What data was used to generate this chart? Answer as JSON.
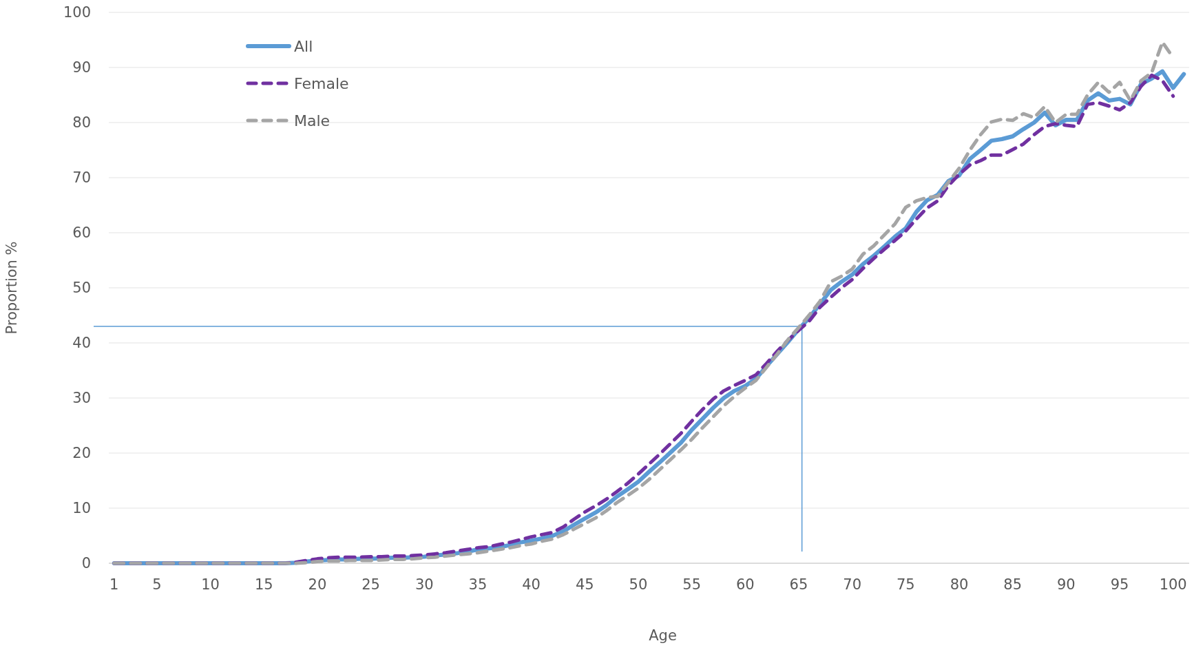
{
  "chart_data": {
    "type": "line",
    "xlabel": "Age",
    "ylabel": "Proportion %",
    "x": [
      1,
      2,
      3,
      4,
      5,
      6,
      7,
      8,
      9,
      10,
      11,
      12,
      13,
      14,
      15,
      16,
      17,
      18,
      19,
      20,
      21,
      22,
      23,
      24,
      25,
      26,
      27,
      28,
      29,
      30,
      31,
      32,
      33,
      34,
      35,
      36,
      37,
      38,
      39,
      40,
      41,
      42,
      43,
      44,
      45,
      46,
      47,
      48,
      49,
      50,
      51,
      52,
      53,
      54,
      55,
      56,
      57,
      58,
      59,
      60,
      61,
      62,
      63,
      64,
      65,
      66,
      67,
      68,
      69,
      70,
      71,
      72,
      73,
      74,
      75,
      76,
      77,
      78,
      79,
      80,
      81,
      82,
      83,
      84,
      85,
      86,
      87,
      88,
      89,
      90,
      91,
      92,
      93,
      94,
      95,
      96,
      97,
      98,
      99,
      100,
      101
    ],
    "xlim": [
      0.5,
      101.5
    ],
    "xticks": [
      1,
      5,
      10,
      15,
      20,
      25,
      30,
      35,
      40,
      45,
      50,
      55,
      60,
      65,
      70,
      75,
      80,
      85,
      90,
      95,
      100
    ],
    "ylim": [
      0,
      100
    ],
    "yticks": [
      0,
      10,
      20,
      30,
      40,
      50,
      60,
      70,
      80,
      90,
      100
    ],
    "grid": "y",
    "legend": "top left",
    "ref_lines": [
      {
        "axis": "x",
        "value": 65.3,
        "color": "#5b9bd5"
      },
      {
        "axis": "y",
        "value": 43,
        "color": "#5b9bd5"
      }
    ],
    "series": [
      {
        "name": "All",
        "color": "#5b9bd5",
        "line_style": "solid",
        "values": [
          0,
          0,
          0,
          0,
          0,
          0,
          0,
          0,
          0,
          0,
          0,
          0,
          0,
          0,
          0,
          0,
          0,
          0.1,
          0.3,
          0.5,
          0.6,
          0.7,
          0.7,
          0.8,
          0.8,
          0.9,
          1.0,
          1.0,
          1.1,
          1.2,
          1.4,
          1.6,
          1.8,
          2.1,
          2.5,
          2.7,
          2.9,
          3.3,
          3.8,
          4.1,
          4.5,
          5,
          5.8,
          7,
          8.1,
          9.2,
          10.5,
          12.1,
          13.4,
          14.8,
          16.6,
          18.3,
          20.1,
          21.9,
          24.2,
          26.2,
          28.2,
          30,
          31.3,
          32.2,
          33.5,
          35.8,
          38,
          40.2,
          42.5,
          44.6,
          47.1,
          49.6,
          51.1,
          52.4,
          54.3,
          55.8,
          57.5,
          59.3,
          60.8,
          63.8,
          65.9,
          66.9,
          69.4,
          70.4,
          73.4,
          75,
          76.7,
          77,
          77.5,
          78.8,
          80,
          81.8,
          79.5,
          80.5,
          80.5,
          84,
          85.3,
          84,
          84.3,
          83.3,
          87,
          88,
          89.3,
          86.3,
          88.8
        ]
      },
      {
        "name": "Female",
        "color": "#7030a0",
        "line_style": "dashed",
        "values": [
          0,
          0,
          0,
          0,
          0,
          0,
          0,
          0,
          0,
          0,
          0,
          0,
          0,
          0,
          0,
          0,
          0,
          0.2,
          0.5,
          0.8,
          1.0,
          1.1,
          1.1,
          1.1,
          1.2,
          1.2,
          1.3,
          1.3,
          1.4,
          1.5,
          1.7,
          1.9,
          2.2,
          2.5,
          2.8,
          3.0,
          3.4,
          3.8,
          4.3,
          4.8,
          5.2,
          5.6,
          6.6,
          8.0,
          9.3,
          10.4,
          11.6,
          13.0,
          14.5,
          16.2,
          18.0,
          19.8,
          21.7,
          23.6,
          25.8,
          27.9,
          29.8,
          31.3,
          32.3,
          33.2,
          34.2,
          36.3,
          38.5,
          40.5,
          42.3,
          44,
          46.5,
          48.3,
          50,
          51.5,
          53.5,
          55.3,
          57,
          58.6,
          60.3,
          62.5,
          64.5,
          65.8,
          68.6,
          70.6,
          72.3,
          73.1,
          74.1,
          74.1,
          75.1,
          76.1,
          77.8,
          79.3,
          79.8,
          79.5,
          79.3,
          83.3,
          83.6,
          83,
          82.3,
          83.6,
          86.6,
          88.6,
          87.6,
          84.8,
          null
        ]
      },
      {
        "name": "Male",
        "color": "#a5a5a5",
        "line_style": "dashed",
        "values": [
          0,
          0,
          0,
          0,
          0,
          0,
          0,
          0,
          0,
          0,
          0,
          0,
          0,
          0,
          0,
          0,
          0,
          0,
          0.1,
          0.3,
          0.4,
          0.4,
          0.5,
          0.5,
          0.5,
          0.6,
          0.7,
          0.7,
          0.8,
          1.0,
          1.1,
          1.3,
          1.5,
          1.7,
          1.9,
          2.2,
          2.5,
          2.8,
          3.2,
          3.5,
          4.0,
          4.4,
          5.2,
          6.2,
          7.2,
          8.2,
          9.5,
          11.0,
          12.3,
          13.6,
          15.2,
          17.0,
          18.8,
          20.6,
          22.5,
          24.6,
          26.6,
          28.6,
          30.3,
          31.8,
          33.2,
          35.6,
          38,
          40.6,
          42.8,
          45.1,
          47.6,
          51.1,
          52.1,
          53.4,
          56.1,
          57.6,
          59.6,
          61.6,
          64.6,
          65.8,
          66.4,
          66.6,
          69.2,
          71.7,
          75,
          77.8,
          80.1,
          80.6,
          80.4,
          81.6,
          80.9,
          82.9,
          80,
          81.5,
          81.5,
          85,
          87.3,
          85.5,
          87.3,
          84,
          87.6,
          89.1,
          94.6,
          91.8,
          null
        ]
      }
    ]
  }
}
